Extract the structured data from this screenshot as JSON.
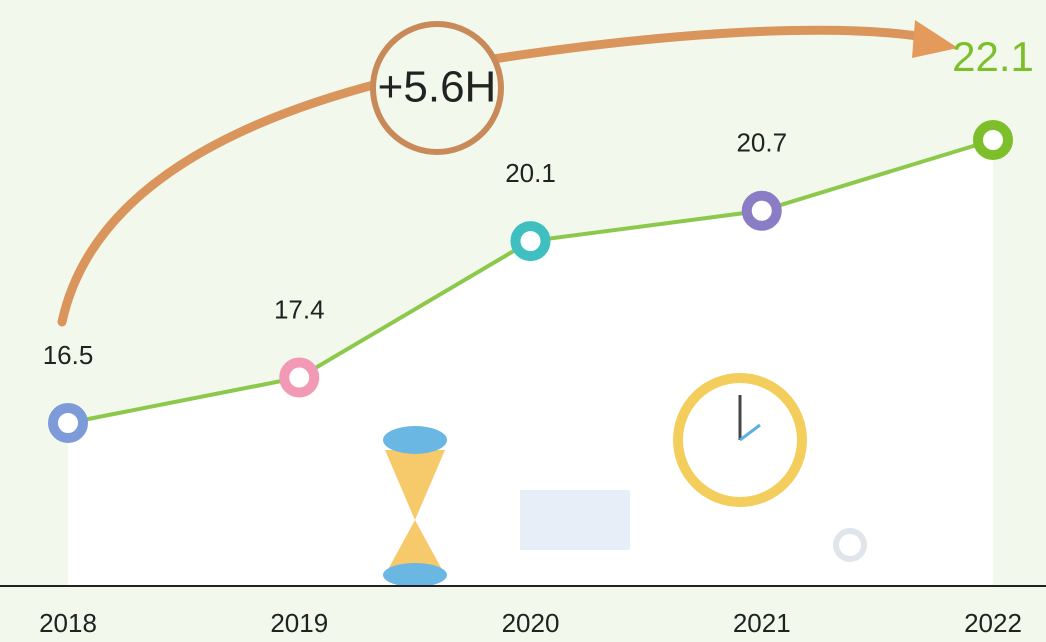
{
  "chart_data": {
    "type": "line",
    "categories": [
      "2018",
      "2019",
      "2020",
      "2021",
      "2022"
    ],
    "values": [
      16.5,
      17.4,
      20.1,
      20.7,
      22.1
    ],
    "line_color": "#8cc84b",
    "point_colors": [
      "#7d9bd8",
      "#f29ab5",
      "#3fbfc0",
      "#8b7cc6",
      "#7dbf2a"
    ],
    "annotation": "+5.6H"
  }
}
